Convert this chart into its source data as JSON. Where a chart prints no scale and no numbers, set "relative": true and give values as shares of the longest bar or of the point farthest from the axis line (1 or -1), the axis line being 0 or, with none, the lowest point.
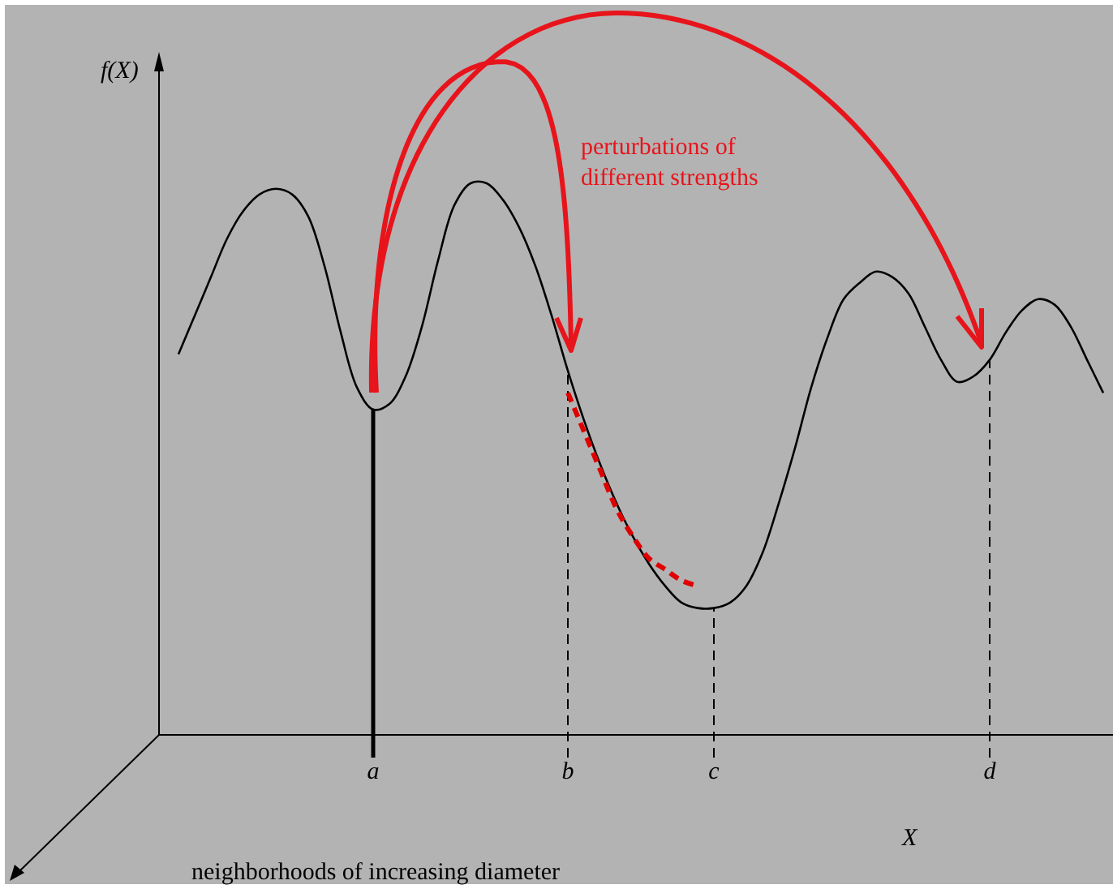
{
  "chart_data": {
    "type": "line",
    "relative": true,
    "xlabel": "X",
    "ylabel": "f(X)",
    "marker": "none",
    "categories": [
      null,
      null,
      null,
      null,
      null,
      null,
      null,
      null,
      null,
      null,
      null,
      null,
      "a",
      null,
      null,
      null,
      null,
      null,
      null,
      null,
      null,
      null,
      null,
      null,
      "b",
      null,
      null,
      null,
      null,
      null,
      null,
      null,
      null,
      "c",
      null,
      null,
      null,
      null,
      null,
      null,
      null,
      null,
      null,
      null,
      null,
      null,
      null,
      null,
      null,
      null,
      "d",
      null,
      null,
      null,
      null,
      null,
      null,
      null
    ],
    "series": [
      {
        "color": "#000000",
        "line_style": "solid",
        "values": [
          0.69,
          0.76,
          0.83,
          0.9,
          0.95,
          0.98,
          0.99,
          0.98,
          0.94,
          0.85,
          0.73,
          0.63,
          0.59,
          0.6,
          0.65,
          0.74,
          0.86,
          0.96,
          1,
          1,
          0.97,
          0.92,
          0.85,
          0.76,
          0.66,
          0.57,
          0.49,
          0.42,
          0.36,
          0.31,
          0.27,
          0.24,
          0.23,
          0.23,
          0.24,
          0.27,
          0.33,
          0.42,
          0.52,
          0.63,
          0.72,
          0.79,
          0.82,
          0.84,
          0.83,
          0.8,
          0.74,
          0.68,
          0.64,
          0.65,
          0.68,
          0.73,
          0.77,
          0.79,
          0.78,
          0.74,
          0.68,
          0.62
        ]
      },
      {
        "color": "#e00000",
        "line_style": "dashed",
        "values": [
          null,
          null,
          null,
          null,
          null,
          null,
          null,
          null,
          null,
          null,
          null,
          null,
          null,
          null,
          null,
          null,
          null,
          null,
          null,
          null,
          null,
          null,
          null,
          null,
          0.62,
          0.55,
          0.48,
          0.41,
          0.36,
          0.32,
          0.3,
          0.28,
          0.27,
          null,
          null,
          null,
          null,
          null,
          null,
          null,
          null,
          null,
          null,
          null,
          null,
          null,
          null,
          null,
          null,
          null,
          null,
          null,
          null,
          null,
          null,
          null,
          null,
          null
        ]
      }
    ],
    "ref_lines": [
      {
        "axis": "x",
        "value": "a",
        "line_style": "solid",
        "color": "#000000"
      },
      {
        "axis": "x",
        "value": "b",
        "line_style": "dashed",
        "color": "#000000"
      },
      {
        "axis": "x",
        "value": "c",
        "line_style": "dashed",
        "color": "#000000"
      },
      {
        "axis": "x",
        "value": "d",
        "line_style": "dashed",
        "color": "#000000"
      }
    ],
    "annotations": [
      "perturbations of different strengths",
      "neighborhoods of increasing diameter"
    ]
  }
}
